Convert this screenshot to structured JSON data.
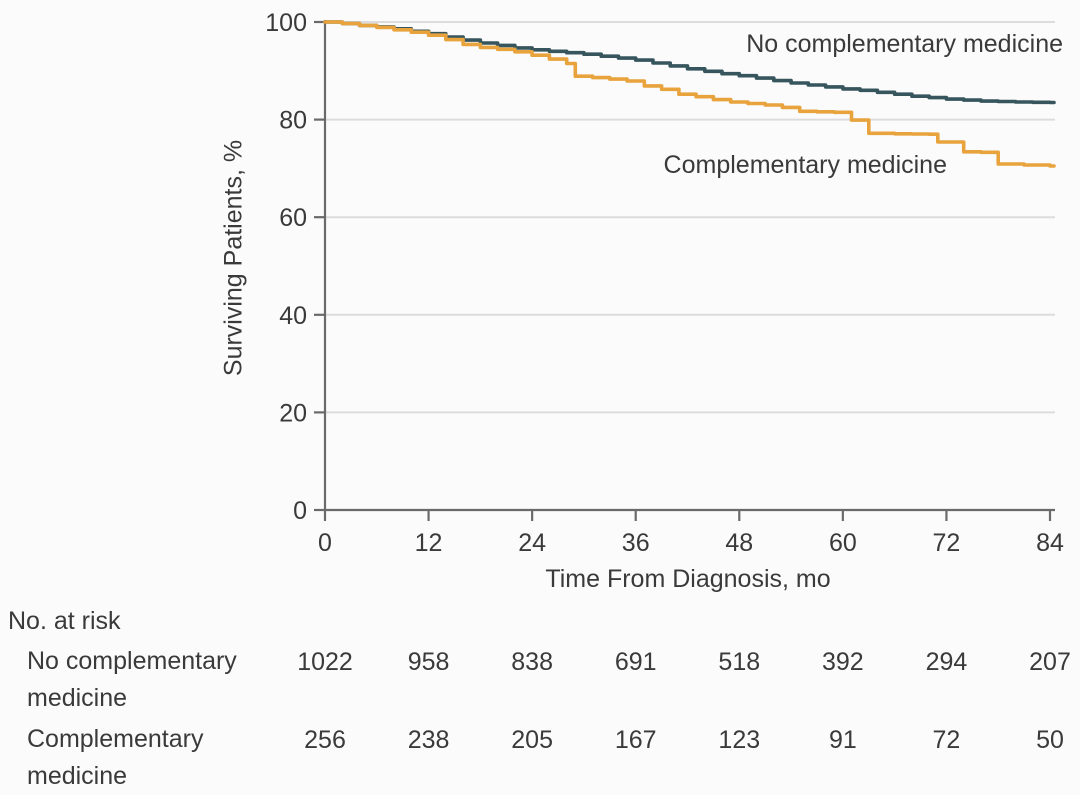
{
  "colors": {
    "background": "#fbfbfb",
    "axis": "#6a6a6a",
    "grid": "#dcdcdc",
    "text": "#3a3a3a",
    "series_no_complementary": "#36555d",
    "series_complementary": "#e8a33d"
  },
  "chart_data": {
    "type": "line",
    "subtype": "kaplan-meier-step",
    "title": "",
    "xlabel": "Time From Diagnosis, mo",
    "ylabel": "Surviving Patients, %",
    "xlim": [
      0,
      84
    ],
    "ylim": [
      0,
      100
    ],
    "x_ticks": [
      0,
      12,
      24,
      36,
      48,
      60,
      72,
      84
    ],
    "y_ticks": [
      0,
      20,
      40,
      60,
      80,
      100
    ],
    "grid": "horizontal",
    "legend_position": "inline-labels",
    "series": [
      {
        "name": "No complementary medicine",
        "label": "No complementary medicine",
        "color": "#36555d",
        "points": [
          [
            0,
            100
          ],
          [
            2,
            99.7
          ],
          [
            4,
            99.3
          ],
          [
            6,
            99
          ],
          [
            8,
            98.6
          ],
          [
            10,
            98.1
          ],
          [
            12,
            97.6
          ],
          [
            14,
            96.9
          ],
          [
            16,
            96.3
          ],
          [
            18,
            95.7
          ],
          [
            20,
            95.2
          ],
          [
            22,
            94.7
          ],
          [
            24,
            94.3
          ],
          [
            26,
            94
          ],
          [
            28,
            93.7
          ],
          [
            30,
            93.4
          ],
          [
            32,
            93
          ],
          [
            34,
            92.6
          ],
          [
            36,
            92.2
          ],
          [
            38,
            91.6
          ],
          [
            40,
            91
          ],
          [
            42,
            90.4
          ],
          [
            44,
            89.9
          ],
          [
            46,
            89.4
          ],
          [
            48,
            89
          ],
          [
            50,
            88.5
          ],
          [
            52,
            88
          ],
          [
            54,
            87.5
          ],
          [
            56,
            87.1
          ],
          [
            58,
            86.7
          ],
          [
            60,
            86.3
          ],
          [
            62,
            86
          ],
          [
            64,
            85.6
          ],
          [
            66,
            85.2
          ],
          [
            68,
            84.8
          ],
          [
            70,
            84.5
          ],
          [
            72,
            84.2
          ],
          [
            74,
            84
          ],
          [
            76,
            83.8
          ],
          [
            78,
            83.7
          ],
          [
            80,
            83.6
          ],
          [
            82,
            83.55
          ],
          [
            84,
            83.5
          ]
        ]
      },
      {
        "name": "Complementary medicine",
        "label": "Complementary medicine",
        "color": "#e8a33d",
        "points": [
          [
            0,
            100
          ],
          [
            2,
            99.7
          ],
          [
            4,
            99.3
          ],
          [
            6,
            98.9
          ],
          [
            8,
            98.4
          ],
          [
            10,
            97.9
          ],
          [
            12,
            97.3
          ],
          [
            14,
            96.4
          ],
          [
            16,
            95.4
          ],
          [
            18,
            94.8
          ],
          [
            20,
            94.4
          ],
          [
            22,
            93.9
          ],
          [
            24,
            93.2
          ],
          [
            26,
            92.4
          ],
          [
            28,
            91.5
          ],
          [
            29,
            88.9
          ],
          [
            31,
            88.6
          ],
          [
            33,
            88.3
          ],
          [
            35,
            87.9
          ],
          [
            37,
            86.9
          ],
          [
            39,
            86.2
          ],
          [
            41,
            85.2
          ],
          [
            43,
            84.7
          ],
          [
            45,
            84.1
          ],
          [
            47,
            83.6
          ],
          [
            49,
            83.3
          ],
          [
            51,
            83
          ],
          [
            53,
            82.5
          ],
          [
            55,
            81.7
          ],
          [
            57,
            81.6
          ],
          [
            59,
            81.5
          ],
          [
            61,
            79.9
          ],
          [
            63,
            77.2
          ],
          [
            66,
            77.1
          ],
          [
            68,
            77.05
          ],
          [
            70,
            77
          ],
          [
            71,
            75.4
          ],
          [
            74,
            73.4
          ],
          [
            76,
            73.3
          ],
          [
            78,
            70.9
          ],
          [
            81,
            70.7
          ],
          [
            84,
            70.5
          ]
        ]
      }
    ]
  },
  "risk_table": {
    "title": "No. at risk",
    "time_points": [
      0,
      12,
      24,
      36,
      48,
      60,
      72,
      84
    ],
    "rows": [
      {
        "label_line1": "No complementary",
        "label_line2": "medicine",
        "values": [
          1022,
          958,
          838,
          691,
          518,
          392,
          294,
          207
        ]
      },
      {
        "label_line1": "Complementary",
        "label_line2": "medicine",
        "values": [
          256,
          238,
          205,
          167,
          123,
          91,
          72,
          50
        ]
      }
    ]
  }
}
